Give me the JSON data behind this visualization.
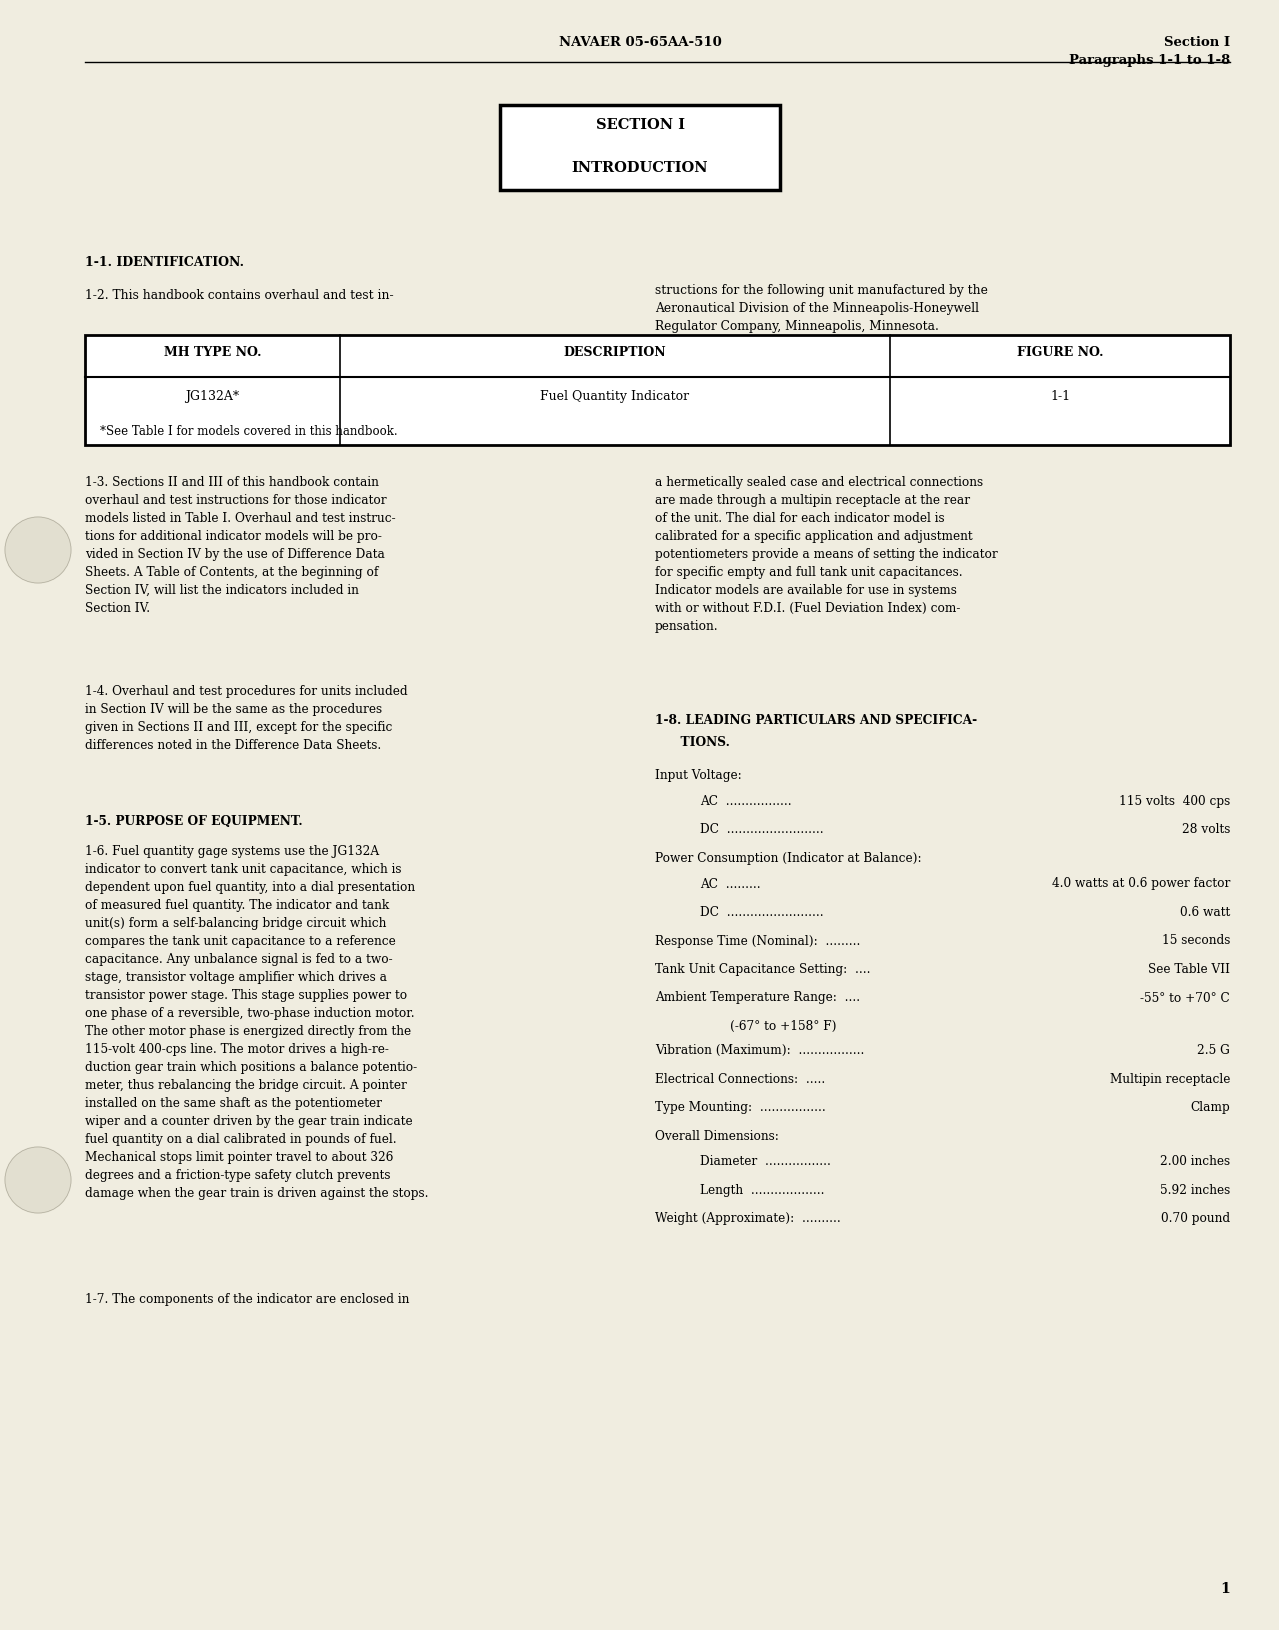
{
  "bg_color": "#f0ede0",
  "page_color": "#f5f2e5",
  "header_left": "NAVAER 05-65AA-510",
  "header_right_line1": "Section I",
  "header_right_line2": "Paragraphs 1-1 to 1-8",
  "section_box_line1": "SECTION I",
  "section_box_line2": "INTRODUCTION",
  "para_1_1_head": "1-1. IDENTIFICATION.",
  "para_1_2": "1-2. This handbook contains overhaul and test in-",
  "para_1_2_right": "structions for the following unit manufactured by the\nAeronautical Division of the Minneapolis-Honeywell\nRegulator Company, Minneapolis, Minnesota.",
  "table_headers": [
    "MH TYPE NO.",
    "DESCRIPTION",
    "FIGURE NO."
  ],
  "table_row": [
    "JG132A*",
    "Fuel Quantity Indicator",
    "1-1"
  ],
  "table_footnote": "*See Table I for models covered in this handbook.",
  "para_1_3_left": "1-3. Sections II and III of this handbook contain\noverhaul and test instructions for those indicator\nmodels listed in Table I. Overhaul and test instruc-\ntions for additional indicator models will be pro-\nvided in Section IV by the use of Difference Data\nSheets. A Table of Contents, at the beginning of\nSection IV, will list the indicators included in\nSection IV.",
  "para_1_3_right": "a hermetically sealed case and electrical connections\nare made through a multipin receptacle at the rear\nof the unit. The dial for each indicator model is\ncalibrated for a specific application and adjustment\npotentiometers provide a means of setting the indicator\nfor specific empty and full tank unit capacitances.\nIndicator models are available for use in systems\nwith or without F.D.I. (Fuel Deviation Index) com-\npensation.",
  "para_1_4_left": "1-4. Overhaul and test procedures for units included\nin Section IV will be the same as the procedures\ngiven in Sections II and III, except for the specific\ndifferences noted in the Difference Data Sheets.",
  "para_1_8_line1": "1-8. LEADING PARTICULARS AND SPECIFICA-",
  "para_1_8_line2": "      TIONS.",
  "para_1_5_head": "1-5. PURPOSE OF EQUIPMENT.",
  "para_1_6_left": "1-6. Fuel quantity gage systems use the JG132A\nindicator to convert tank unit capacitance, which is\ndependent upon fuel quantity, into a dial presentation\nof measured fuel quantity. The indicator and tank\nunit(s) form a self-balancing bridge circuit which\ncompares the tank unit capacitance to a reference\ncapacitance. Any unbalance signal is fed to a two-\nstage, transistor voltage amplifier which drives a\ntransistor power stage. This stage supplies power to\none phase of a reversible, two-phase induction motor.\nThe other motor phase is energized directly from the\n115-volt 400-cps line. The motor drives a high-re-\nduction gear train which positions a balance potentio-\nmeter, thus rebalancing the bridge circuit. A pointer\ninstalled on the same shaft as the potentiometer\nwiper and a counter driven by the gear train indicate\nfuel quantity on a dial calibrated in pounds of fuel.\nMechanical stops limit pointer travel to about 326\ndegrees and a friction-type safety clutch prevents\ndamage when the gear train is driven against the stops.",
  "para_1_7_left": "1-7. The components of the indicator are enclosed in",
  "specs": [
    {
      "label": "Input Voltage:",
      "value": "",
      "dots": false,
      "indent": false
    },
    {
      "label": "AC",
      "dots": ".................",
      "value": "115 volts  400 cps",
      "indent": true
    },
    {
      "label": "DC",
      "dots": ".........................",
      "value": "28 volts",
      "indent": true
    },
    {
      "label": "Power Consumption (Indicator at Balance):",
      "value": "",
      "dots": false,
      "indent": false
    },
    {
      "label": "AC",
      "dots": ".........",
      "value": "4.0 watts at 0.6 power factor",
      "indent": true
    },
    {
      "label": "DC",
      "dots": ".........................",
      "value": "0.6 watt",
      "indent": true
    },
    {
      "label": "Response Time (Nominal):",
      "dots": ".........",
      "value": "15 seconds",
      "indent": false
    },
    {
      "label": "Tank Unit Capacitance Setting:",
      "dots": "....",
      "value": "See Table VII",
      "indent": false
    },
    {
      "label": "Ambient Temperature Range:",
      "dots": "....",
      "value": "-55° to +70° C",
      "indent": false
    },
    {
      "label": "",
      "dots": "",
      "value": "(-67° to +158° F)",
      "indent": true,
      "extra_line": true
    },
    {
      "label": "Vibration (Maximum):",
      "dots": ".................",
      "value": "2.5 G",
      "indent": false
    },
    {
      "label": "Electrical Connections:",
      "dots": ".....",
      "value": "Multipin receptacle",
      "indent": false
    },
    {
      "label": "Type Mounting:",
      "dots": ".................",
      "value": "Clamp",
      "indent": false
    },
    {
      "label": "Overall Dimensions:",
      "value": "",
      "dots": false,
      "indent": false
    },
    {
      "label": "Diameter",
      "dots": ".................",
      "value": "2.00 inches",
      "indent": true
    },
    {
      "label": "Length",
      "dots": "...................",
      "value": "5.92 inches",
      "indent": true
    },
    {
      "label": "Weight (Approximate):",
      "dots": "..........",
      "value": "0.70 pound",
      "indent": false
    }
  ],
  "page_number": "1"
}
